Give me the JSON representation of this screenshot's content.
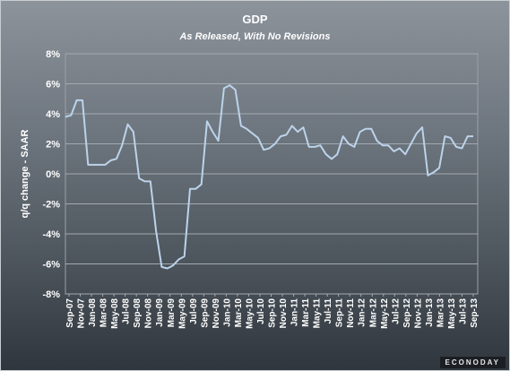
{
  "chart_data": {
    "type": "line",
    "title": "GDP",
    "subtitle": "As Released, With No Revisions",
    "ylabel": "q/q change - SAAR",
    "xlabel": "",
    "ylim": [
      -8,
      8
    ],
    "yticks": [
      8,
      6,
      4,
      2,
      0,
      -2,
      -4,
      -6,
      -8
    ],
    "ytick_labels": [
      "8%",
      "6%",
      "4%",
      "2%",
      "0%",
      "-2%",
      "-4%",
      "-6%",
      "-8%"
    ],
    "xtick_labels": [
      "Sep-07",
      "Nov-07",
      "Jan-08",
      "Mar-08",
      "May-08",
      "Jul-08",
      "Sep-08",
      "Nov-08",
      "Jan-09",
      "Mar-09",
      "May-09",
      "Jul-09",
      "Sep-09",
      "Nov-09",
      "Jan-10",
      "Mar-10",
      "May-10",
      "Jul-10",
      "Sep-10",
      "Nov-10",
      "Jan-11",
      "Mar-11",
      "May-11",
      "Jul-11",
      "Sep-11",
      "Nov-11",
      "Jan-12",
      "Mar-12",
      "May-12",
      "Jul-12",
      "Sep-12",
      "Nov-12",
      "Jan-13",
      "Mar-13",
      "May-13",
      "Jul-13",
      "Sep-13"
    ],
    "grid": true,
    "line_color": "#bcd3ea",
    "series": [
      {
        "name": "",
        "values": [
          3.8,
          3.9,
          4.9,
          4.9,
          0.6,
          0.6,
          0.6,
          0.6,
          0.9,
          1.0,
          1.9,
          3.3,
          2.8,
          -0.3,
          -0.5,
          -0.5,
          -3.8,
          -6.2,
          -6.3,
          -6.1,
          -5.7,
          -5.5,
          -1.0,
          -1.0,
          -0.7,
          3.5,
          2.8,
          2.2,
          5.7,
          5.9,
          5.6,
          3.2,
          3.0,
          2.7,
          2.4,
          1.6,
          1.7,
          2.0,
          2.5,
          2.6,
          3.2,
          2.8,
          3.1,
          1.8,
          1.8,
          1.9,
          1.3,
          1.0,
          1.3,
          2.5,
          2.0,
          1.8,
          2.8,
          3.0,
          3.0,
          2.2,
          1.9,
          1.9,
          1.5,
          1.7,
          1.3,
          2.0,
          2.7,
          3.1,
          -0.1,
          0.1,
          0.4,
          2.5,
          2.4,
          1.8,
          1.7,
          2.5,
          2.5
        ]
      }
    ]
  },
  "brand": "ECONODAY"
}
